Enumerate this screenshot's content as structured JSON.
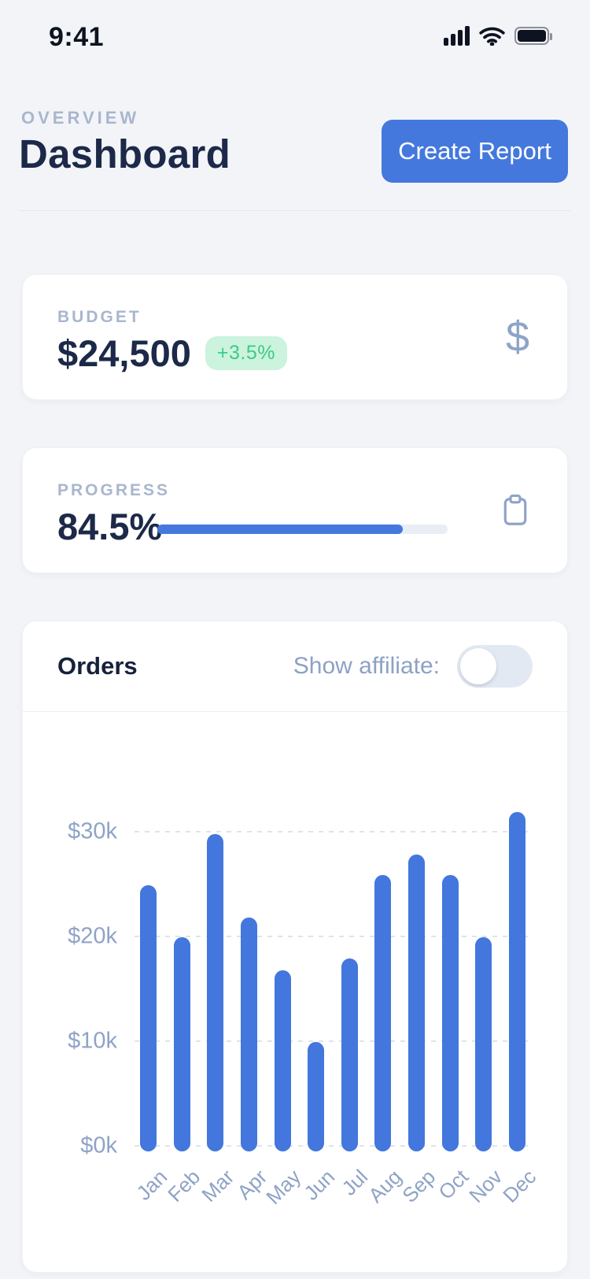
{
  "status_bar": {
    "time": "9:41"
  },
  "header": {
    "eyebrow": "OVERVIEW",
    "title": "Dashboard",
    "create_report_label": "Create Report"
  },
  "budget_card": {
    "label": "BUDGET",
    "value": "$24,500",
    "delta": "+3.5%",
    "icon": "dollar-icon",
    "dollar_glyph": "$"
  },
  "progress_card": {
    "label": "PROGRESS",
    "value": "84.5%",
    "percent": 84.5,
    "icon": "clipboard-icon"
  },
  "orders_card": {
    "title": "Orders",
    "toggle_label": "Show affiliate:",
    "toggle_on": false
  },
  "chart_data": {
    "type": "bar",
    "title": "Orders",
    "categories": [
      "Jan",
      "Feb",
      "Mar",
      "Apr",
      "May",
      "Jun",
      "Jul",
      "Aug",
      "Sep",
      "Oct",
      "Nov",
      "Dec"
    ],
    "values": [
      24.9,
      19.9,
      29.8,
      21.8,
      16.8,
      9.9,
      17.9,
      25.9,
      27.8,
      25.9,
      19.9,
      31.9
    ],
    "value_unit": "thousand dollars",
    "yticks": [
      {
        "label": "$30k",
        "value": 30
      },
      {
        "label": "$20k",
        "value": 20
      },
      {
        "label": "$10k",
        "value": 10
      },
      {
        "label": "$0k",
        "value": 0
      }
    ],
    "ylim": [
      0,
      33.5
    ],
    "grid": "horizontal-dotted",
    "legend": "none",
    "bar_color": "#4377dd"
  },
  "colors": {
    "background": "#f2f4f8",
    "card": "#ffffff",
    "accent_blue": "#4478dd",
    "navy_text": "#1c2948",
    "muted_label": "#a9b6ce",
    "axis_label": "#8fa3c6",
    "delta_green_text": "#3ecb87",
    "delta_green_bg": "#cbf3de",
    "toggle_track": "#e3e9f3"
  }
}
